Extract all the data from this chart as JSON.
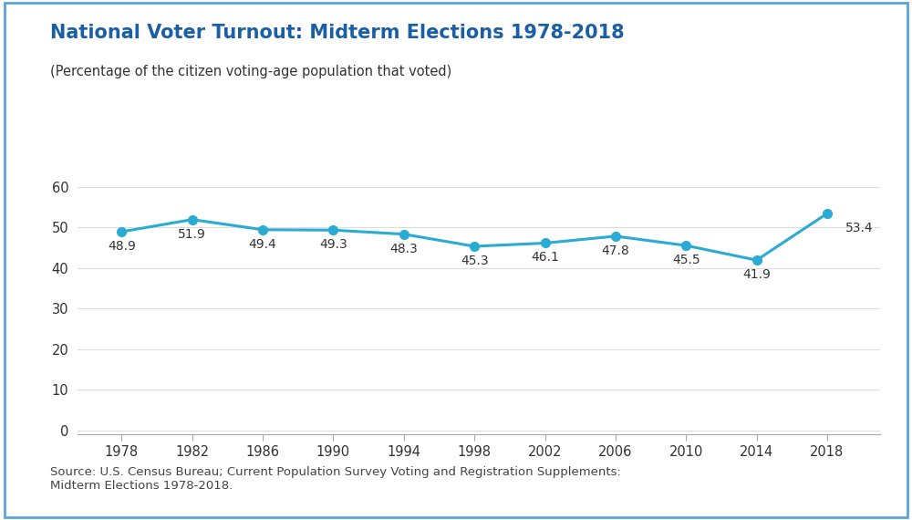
{
  "title": "National Voter Turnout: Midterm Elections 1978-2018",
  "subtitle": "(Percentage of the citizen voting-age population that voted)",
  "source_text": "Source: U.S. Census Bureau; Current Population Survey Voting and Registration Supplements:\nMidterm Elections 1978-2018.",
  "years": [
    1978,
    1982,
    1986,
    1990,
    1994,
    1998,
    2002,
    2006,
    2010,
    2014,
    2018
  ],
  "values": [
    48.9,
    51.9,
    49.4,
    49.3,
    48.3,
    45.3,
    46.1,
    47.8,
    45.5,
    41.9,
    53.4
  ],
  "line_color": "#29ABD4",
  "marker_color": "#29ABD4",
  "title_color": "#1A5EA6",
  "subtitle_color": "#333333",
  "source_color": "#444444",
  "background_color": "#FFFFFF",
  "border_color": "#5BA3D9",
  "grid_color": "#DDDDDD",
  "yticks": [
    0,
    10,
    20,
    30,
    40,
    50,
    60
  ],
  "ylim": [
    -1,
    65
  ],
  "xlim": [
    1975.5,
    2021
  ],
  "title_fontsize": 15,
  "subtitle_fontsize": 10.5,
  "label_fontsize": 10,
  "tick_fontsize": 10.5,
  "source_fontsize": 9.5
}
